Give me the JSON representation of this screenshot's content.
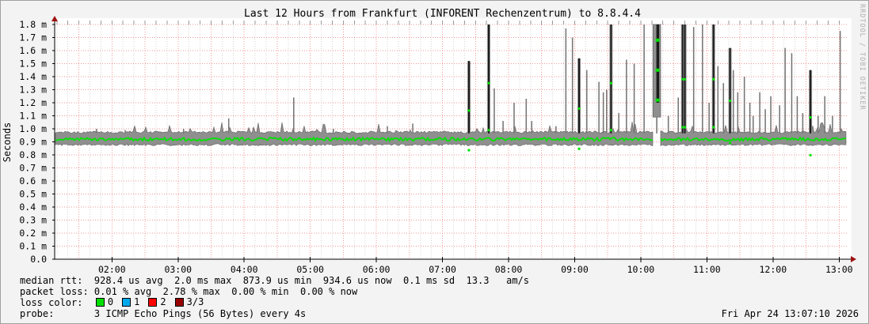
{
  "chart_data": {
    "type": "line",
    "variant": "smokeping-latency-graph",
    "title": "Last 12 Hours from Frankfurt (INFORENT Rechenzentrum) to 8.8.4.4",
    "ylabel": "Seconds",
    "ylim_ms": [
      0,
      1.8
    ],
    "y_tick_step_ms": 0.1,
    "y_tick_labels": [
      "0.0",
      "0.1 m",
      "0.2 m",
      "0.3 m",
      "0.4 m",
      "0.5 m",
      "0.6 m",
      "0.7 m",
      "0.8 m",
      "0.9 m",
      "1.0 m",
      "1.1 m",
      "1.2 m",
      "1.3 m",
      "1.4 m",
      "1.5 m",
      "1.6 m",
      "1.7 m",
      "1.8 m"
    ],
    "x_start": "01:08",
    "x_end": "13:07",
    "x_tick_labels": [
      "02:00",
      "03:00",
      "04:00",
      "05:00",
      "06:00",
      "07:00",
      "08:00",
      "09:00",
      "10:00",
      "11:00",
      "12:00",
      "13:00"
    ],
    "grid": {
      "h_step_ms": 0.1,
      "v_major_min": 30,
      "v_minor_min": 10
    },
    "baseline": {
      "median_ms": 0.92,
      "band_low_ms": 0.885,
      "band_high_ms": 0.965,
      "jitter_ms": 0.05
    },
    "spikes": [
      [
        "01:46",
        1.0,
        ""
      ],
      [
        "02:12",
        0.99,
        ""
      ],
      [
        "03:05",
        1.0,
        ""
      ],
      [
        "03:46",
        1.08,
        ""
      ],
      [
        "04:45",
        1.24,
        ""
      ],
      [
        "05:21",
        1.0,
        ""
      ],
      [
        "06:10",
        1.02,
        ""
      ],
      [
        "06:33",
        1.04,
        ""
      ],
      [
        "07:24",
        1.52,
        "d"
      ],
      [
        "07:42",
        1.8,
        "d"
      ],
      [
        "07:47",
        1.31,
        ""
      ],
      [
        "07:55",
        1.06,
        ""
      ],
      [
        "08:05",
        1.2,
        ""
      ],
      [
        "08:16",
        1.23,
        ""
      ],
      [
        "08:21",
        1.06,
        ""
      ],
      [
        "08:43",
        1.02,
        ""
      ],
      [
        "08:52",
        1.77,
        ""
      ],
      [
        "08:58",
        1.7,
        ""
      ],
      [
        "09:04",
        1.54,
        "d"
      ],
      [
        "09:11",
        1.45,
        ""
      ],
      [
        "09:22",
        1.36,
        ""
      ],
      [
        "09:26",
        1.28,
        ""
      ],
      [
        "09:29",
        1.3,
        ""
      ],
      [
        "09:33",
        1.8,
        "d"
      ],
      [
        "09:40",
        1.12,
        ""
      ],
      [
        "09:47",
        1.53,
        ""
      ],
      [
        "09:54",
        1.5,
        ""
      ],
      [
        "10:03",
        1.84,
        ""
      ],
      [
        "10:25",
        1.1,
        ""
      ],
      [
        "10:34",
        1.24,
        ""
      ],
      [
        "10:38",
        1.84,
        "d"
      ],
      [
        "10:40",
        1.84,
        "d"
      ],
      [
        "10:48",
        1.78,
        ""
      ],
      [
        "10:56",
        1.84,
        ""
      ],
      [
        "11:02",
        1.2,
        ""
      ],
      [
        "11:06",
        1.84,
        "d"
      ],
      [
        "11:10",
        1.48,
        ""
      ],
      [
        "11:15",
        1.35,
        ""
      ],
      [
        "11:21",
        1.62,
        "d"
      ],
      [
        "11:24",
        1.45,
        ""
      ],
      [
        "11:28",
        1.28,
        ""
      ],
      [
        "11:34",
        1.4,
        ""
      ],
      [
        "11:39",
        1.2,
        ""
      ],
      [
        "11:42",
        1.1,
        ""
      ],
      [
        "11:48",
        1.28,
        ""
      ],
      [
        "11:53",
        1.15,
        ""
      ],
      [
        "11:58",
        1.25,
        ""
      ],
      [
        "12:06",
        1.18,
        ""
      ],
      [
        "12:11",
        1.62,
        ""
      ],
      [
        "12:17",
        1.58,
        ""
      ],
      [
        "12:22",
        1.25,
        ""
      ],
      [
        "12:27",
        1.12,
        ""
      ],
      [
        "12:34",
        1.45,
        "d"
      ],
      [
        "12:41",
        1.1,
        ""
      ],
      [
        "12:47",
        1.25,
        ""
      ],
      [
        "12:54",
        1.1,
        ""
      ],
      [
        "13:01",
        1.75,
        ""
      ]
    ],
    "loss_event": {
      "start": "10:11",
      "end": "10:18",
      "low_ms": 1.09,
      "high_ms": 1.84,
      "median_marks_ms": [
        1.68,
        1.45,
        1.22
      ]
    },
    "colors": {
      "plot_bg": "#ffffff",
      "median": "#00e400",
      "smoke": "#8f8f8f",
      "smoke_edge": "#5f5f5f",
      "spike": "#6f6f6f",
      "spike_dark": "#1c1c1c",
      "grid_major": "#f19999",
      "grid_minor": "#d4d4d4",
      "axis": "#000000",
      "arrow": "#9e1010"
    }
  },
  "legend": {
    "median_rtt": "median rtt:  928.4 us avg  2.0 ms max  873.9 us min  934.6 us now  0.1 ms sd  13.3   am/s",
    "packet_loss": "packet loss: 0.01 % avg  2.78 % max  0.00 % min  0.00 % now",
    "loss_color_label": "loss color:  ",
    "loss_colors": [
      {
        "label": "0",
        "color": "#00e000"
      },
      {
        "label": "1",
        "color": "#00a8ec"
      },
      {
        "label": "2",
        "color": "#ff0000"
      },
      {
        "label": "3/3",
        "color": "#990000"
      }
    ],
    "probe_label": "probe:       ",
    "probe": "3 ICMP Echo Pings (56 Bytes) every 4s"
  },
  "footer": {
    "timestamp": "Fri Apr 24 13:07:10 2026",
    "watermark": "RRDTOOL / TOBI OETIKER"
  }
}
